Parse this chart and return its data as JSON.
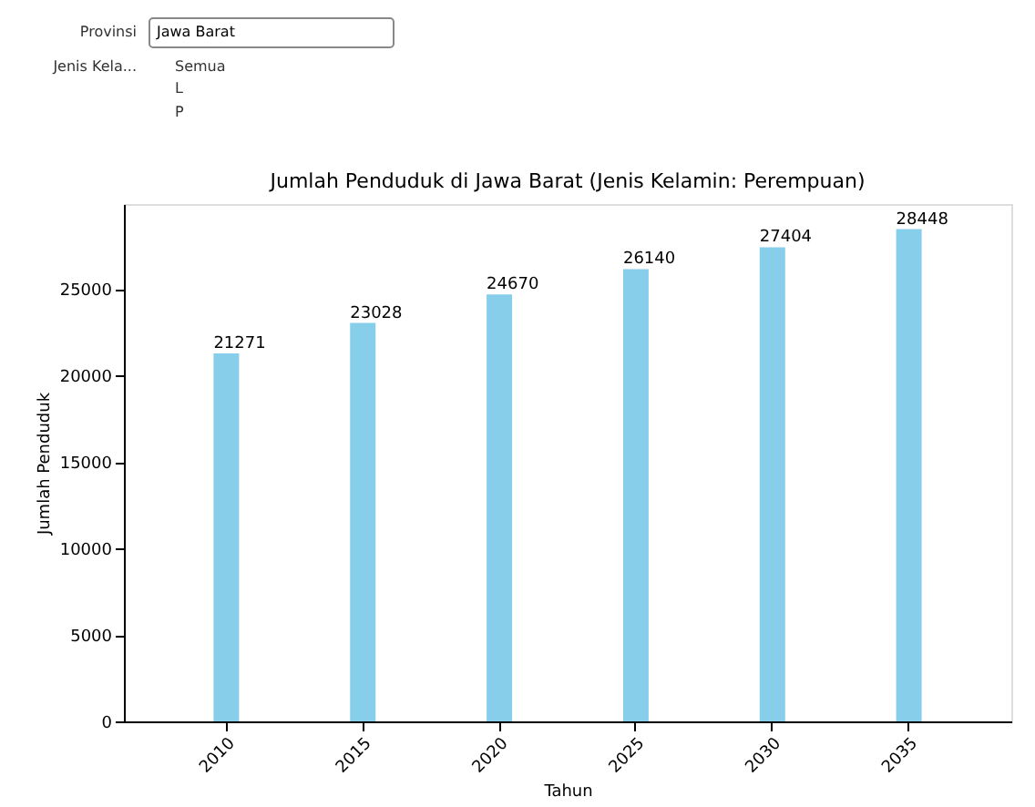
{
  "chart_data": {
    "type": "bar",
    "title": "Jumlah Penduduk di Jawa Barat (Jenis Kelamin: Perempuan)",
    "xlabel": "Tahun",
    "ylabel": "Jumlah Penduduk",
    "categories": [
      "2010",
      "2015",
      "2020",
      "2025",
      "2030",
      "2035"
    ],
    "values": [
      21271,
      23028,
      24670,
      26140,
      27404,
      28448
    ],
    "color": "#87ceeb",
    "ylim": [
      0,
      29900
    ],
    "yticks": [
      0,
      5000,
      10000,
      15000,
      20000,
      25000
    ],
    "grid": false,
    "data_labels": true,
    "annotations": [
      "Provinsi",
      "Jawa Barat",
      "Jenis Kela...",
      "Semua",
      "L",
      "P"
    ]
  }
}
